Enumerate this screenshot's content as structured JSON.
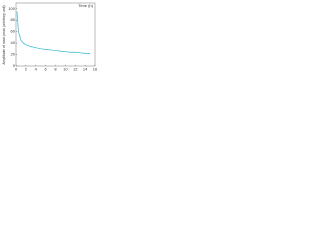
{
  "chart_data": {
    "type": "line",
    "y_label": "Amplitude of main peak (arbitrary unit)",
    "x_label": "Time (h)",
    "xlim": [
      0,
      16
    ],
    "xticks": [
      0,
      2,
      4,
      6,
      8,
      10,
      12,
      14,
      16
    ],
    "ylim": [
      0,
      110
    ],
    "yticks": [
      0,
      20,
      40,
      60,
      80,
      100
    ],
    "series": [
      {
        "color": "#2cb5d3",
        "x": [
          0.2,
          0.5,
          1,
          1.5,
          2,
          3,
          4,
          5,
          6,
          7,
          8,
          9,
          10,
          11,
          12,
          13,
          14,
          15
        ],
        "values": [
          95,
          60,
          45,
          40,
          37,
          34,
          32,
          30,
          29,
          28,
          27,
          26,
          25,
          24,
          24,
          23,
          22,
          22
        ]
      }
    ]
  }
}
